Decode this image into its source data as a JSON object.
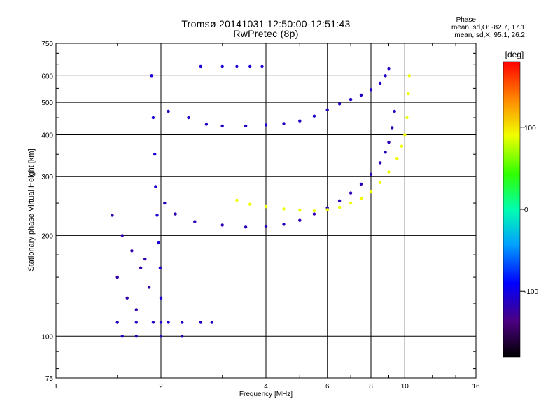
{
  "header": {
    "title_line1": "Tromsø 20141031 12:50:00-12:51:43",
    "title_line2": "RwPretec (8p)",
    "phase_title": "Phase",
    "phase_o": "mean, sd,O: -82.7, 17.1",
    "phase_x": "mean, sd,X:  95.1, 26.2"
  },
  "colorbar": {
    "unit_label": "[deg]",
    "range": [
      -180,
      180
    ],
    "ticks": [
      {
        "value": 100,
        "label": "100"
      },
      {
        "value": 0,
        "label": "0"
      },
      {
        "value": -100,
        "label": "-100"
      }
    ]
  },
  "chart_data": {
    "type": "scatter",
    "title": "Tromsø 20141031 12:50:00-12:51:43",
    "subtitle": "RwPretec (8p)",
    "xlabel": "Frequency [MHz]",
    "ylabel": "Stationary phase Virtual Height [km]",
    "x_scale": "log",
    "y_scale": "log",
    "xlim": [
      1,
      16
    ],
    "ylim": [
      75,
      750
    ],
    "grid": true,
    "x_ticks": [
      {
        "value": 1,
        "label": "1"
      },
      {
        "value": 2,
        "label": "2"
      },
      {
        "value": 4,
        "label": "4"
      },
      {
        "value": 6,
        "label": "6"
      },
      {
        "value": 8,
        "label": "8"
      },
      {
        "value": 10,
        "label": "10"
      },
      {
        "value": 16,
        "label": "16"
      }
    ],
    "y_ticks": [
      {
        "value": 75,
        "label": "75"
      },
      {
        "value": 100,
        "label": "100"
      },
      {
        "value": 200,
        "label": "200"
      },
      {
        "value": 300,
        "label": "300"
      },
      {
        "value": 400,
        "label": "400"
      },
      {
        "value": 500,
        "label": "500"
      },
      {
        "value": 600,
        "label": "600"
      },
      {
        "value": 750,
        "label": "750"
      }
    ],
    "color_variable": "phase [deg]",
    "traces": [
      {
        "points": [
          [
            2.1,
            470
          ],
          [
            2.4,
            450
          ],
          [
            2.7,
            430
          ],
          [
            3.0,
            425
          ],
          [
            3.5,
            425
          ],
          [
            4.0,
            428
          ],
          [
            4.5,
            432
          ],
          [
            5.0,
            440
          ],
          [
            5.5,
            455
          ],
          [
            6.0,
            475
          ],
          [
            6.5,
            495
          ],
          [
            7.0,
            510
          ],
          [
            7.5,
            525
          ],
          [
            8.0,
            545
          ],
          [
            8.5,
            570
          ],
          [
            8.8,
            600
          ],
          [
            9.0,
            630
          ]
        ],
        "phase": -110
      },
      {
        "points": [
          [
            2.05,
            250
          ],
          [
            2.2,
            232
          ],
          [
            2.5,
            220
          ],
          [
            3.0,
            215
          ],
          [
            3.5,
            212
          ],
          [
            4.0,
            213
          ],
          [
            4.5,
            216
          ],
          [
            5.0,
            222
          ],
          [
            5.5,
            232
          ],
          [
            6.0,
            242
          ],
          [
            6.5,
            254
          ],
          [
            7.0,
            268
          ],
          [
            7.5,
            285
          ],
          [
            8.0,
            305
          ],
          [
            8.5,
            330
          ],
          [
            8.8,
            355
          ],
          [
            9.0,
            380
          ],
          [
            9.2,
            420
          ],
          [
            9.35,
            470
          ]
        ],
        "phase": -115
      },
      {
        "points": [
          [
            3.3,
            255
          ],
          [
            3.6,
            248
          ],
          [
            4.0,
            244
          ],
          [
            4.5,
            240
          ],
          [
            5.0,
            238
          ],
          [
            5.5,
            237
          ],
          [
            6.0,
            239
          ],
          [
            6.5,
            243
          ],
          [
            7.0,
            250
          ],
          [
            7.5,
            258
          ],
          [
            8.0,
            270
          ],
          [
            8.5,
            288
          ],
          [
            9.0,
            310
          ],
          [
            9.5,
            340
          ],
          [
            9.8,
            370
          ],
          [
            10.0,
            400
          ],
          [
            10.15,
            450
          ],
          [
            10.25,
            530
          ],
          [
            10.3,
            600
          ]
        ],
        "phase": 90
      },
      {
        "points": [
          [
            1.88,
            600
          ],
          [
            1.9,
            450
          ],
          [
            1.92,
            350
          ],
          [
            1.93,
            280
          ],
          [
            1.95,
            230
          ],
          [
            1.97,
            190
          ],
          [
            1.99,
            160
          ],
          [
            2.0,
            130
          ],
          [
            2.0,
            110
          ]
        ],
        "phase": -105
      },
      {
        "points": [
          [
            1.5,
            110
          ],
          [
            1.7,
            110
          ],
          [
            1.9,
            110
          ],
          [
            2.1,
            110
          ],
          [
            2.3,
            110
          ],
          [
            2.6,
            110
          ],
          [
            2.8,
            110
          ]
        ],
        "phase": -110
      },
      {
        "points": [
          [
            1.55,
            100
          ],
          [
            1.7,
            100
          ],
          [
            2.0,
            100
          ],
          [
            2.3,
            100
          ]
        ],
        "phase": -115
      },
      {
        "points": [
          [
            1.45,
            230
          ],
          [
            1.55,
            200
          ],
          [
            1.65,
            180
          ],
          [
            1.75,
            160
          ],
          [
            1.85,
            140
          ],
          [
            1.5,
            150
          ],
          [
            1.6,
            130
          ],
          [
            1.7,
            120
          ],
          [
            1.8,
            170
          ]
        ],
        "phase": -120
      },
      {
        "points": [
          [
            2.6,
            640
          ],
          [
            3.0,
            640
          ],
          [
            3.3,
            640
          ],
          [
            3.6,
            640
          ],
          [
            3.9,
            640
          ]
        ],
        "phase": -105
      }
    ]
  }
}
